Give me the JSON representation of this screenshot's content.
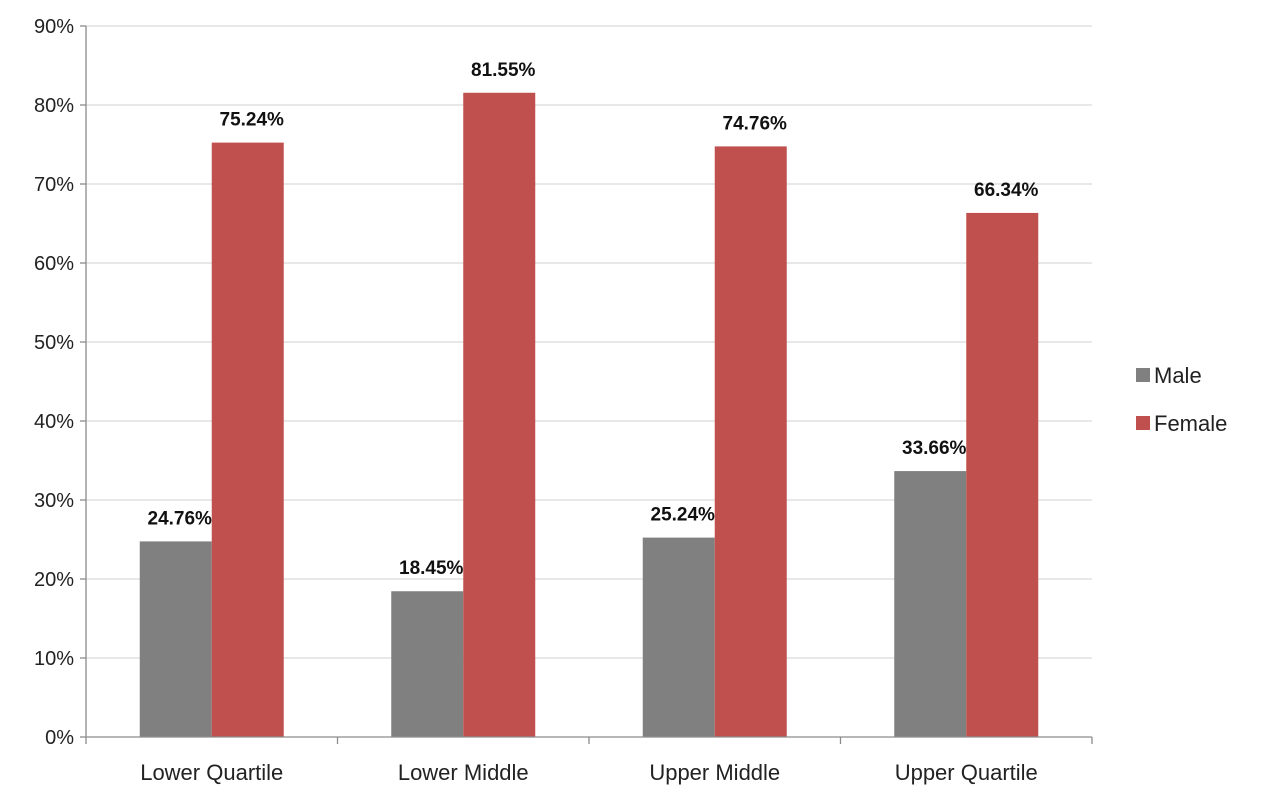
{
  "chart_data": {
    "type": "bar",
    "categories": [
      "Lower Quartile",
      "Lower Middle",
      "Upper Middle",
      "Upper Quartile"
    ],
    "series": [
      {
        "name": "Male",
        "values": [
          24.76,
          18.45,
          25.24,
          33.66
        ],
        "labels": [
          "24.76%",
          "18.45%",
          "25.24%",
          "33.66%"
        ],
        "color": "#808080"
      },
      {
        "name": "Female",
        "values": [
          75.24,
          81.55,
          74.76,
          66.34
        ],
        "labels": [
          "75.24%",
          "81.55%",
          "74.76%",
          "66.34%"
        ],
        "color": "#c0504d"
      }
    ],
    "ylim": [
      0,
      90
    ],
    "yticks": [
      0,
      10,
      20,
      30,
      40,
      50,
      60,
      70,
      80,
      90
    ],
    "ytick_labels": [
      "0%",
      "10%",
      "20%",
      "30%",
      "40%",
      "50%",
      "60%",
      "70%",
      "80%",
      "90%"
    ],
    "grid": true,
    "legend_position": "right",
    "title": "",
    "xlabel": "",
    "ylabel": ""
  }
}
